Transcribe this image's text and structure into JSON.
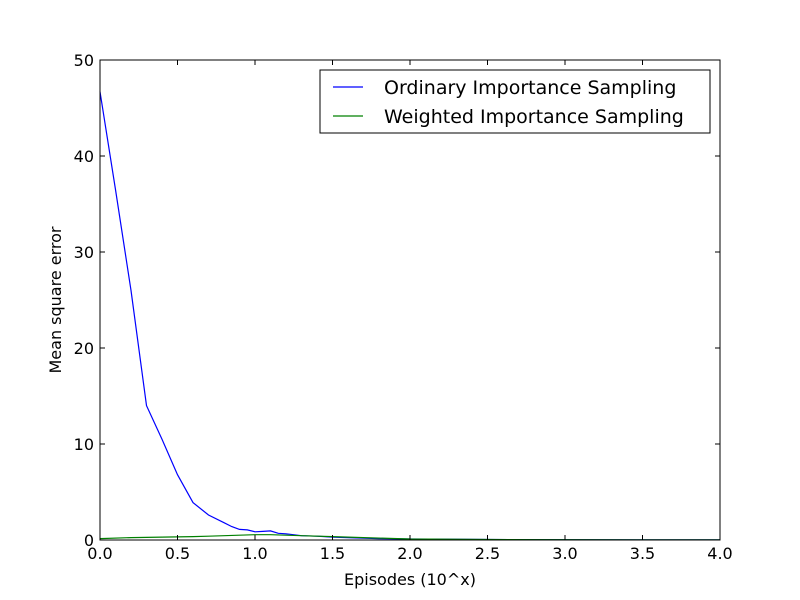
{
  "chart_data": {
    "type": "line",
    "title": "",
    "xlabel": "Episodes (10^x)",
    "ylabel": "Mean square error",
    "xlim": [
      0,
      4
    ],
    "ylim": [
      0,
      50
    ],
    "x_ticks": [
      "0.0",
      "0.5",
      "1.0",
      "1.5",
      "2.0",
      "2.5",
      "3.0",
      "3.5",
      "4.0"
    ],
    "y_ticks": [
      "0",
      "10",
      "20",
      "30",
      "40",
      "50"
    ],
    "grid": false,
    "legend_position": "top-right",
    "series": [
      {
        "name": "Ordinary Importance Sampling",
        "color": "#0000ff",
        "x": [
          0.0,
          0.1,
          0.2,
          0.3,
          0.4,
          0.5,
          0.6,
          0.7,
          0.8,
          0.85,
          0.9,
          0.95,
          1.0,
          1.05,
          1.1,
          1.15,
          1.2,
          1.3,
          1.4,
          1.5,
          1.6,
          1.8,
          2.0,
          2.5,
          3.0,
          3.5,
          4.0
        ],
        "y": [
          46.7,
          36.5,
          26.0,
          14.0,
          10.5,
          6.8,
          3.9,
          2.6,
          1.8,
          1.4,
          1.1,
          1.05,
          0.85,
          0.9,
          0.95,
          0.7,
          0.65,
          0.45,
          0.4,
          0.3,
          0.25,
          0.15,
          0.1,
          0.05,
          0.03,
          0.02,
          0.01
        ]
      },
      {
        "name": "Weighted Importance Sampling",
        "color": "#008000",
        "x": [
          0.0,
          0.2,
          0.4,
          0.6,
          0.7,
          0.8,
          0.9,
          1.0,
          1.1,
          1.2,
          1.3,
          1.5,
          1.8,
          2.0,
          2.5,
          3.0,
          3.5,
          4.0
        ],
        "y": [
          0.15,
          0.25,
          0.3,
          0.35,
          0.4,
          0.45,
          0.5,
          0.55,
          0.55,
          0.5,
          0.45,
          0.35,
          0.2,
          0.1,
          0.05,
          0.03,
          0.02,
          0.01
        ]
      }
    ]
  }
}
